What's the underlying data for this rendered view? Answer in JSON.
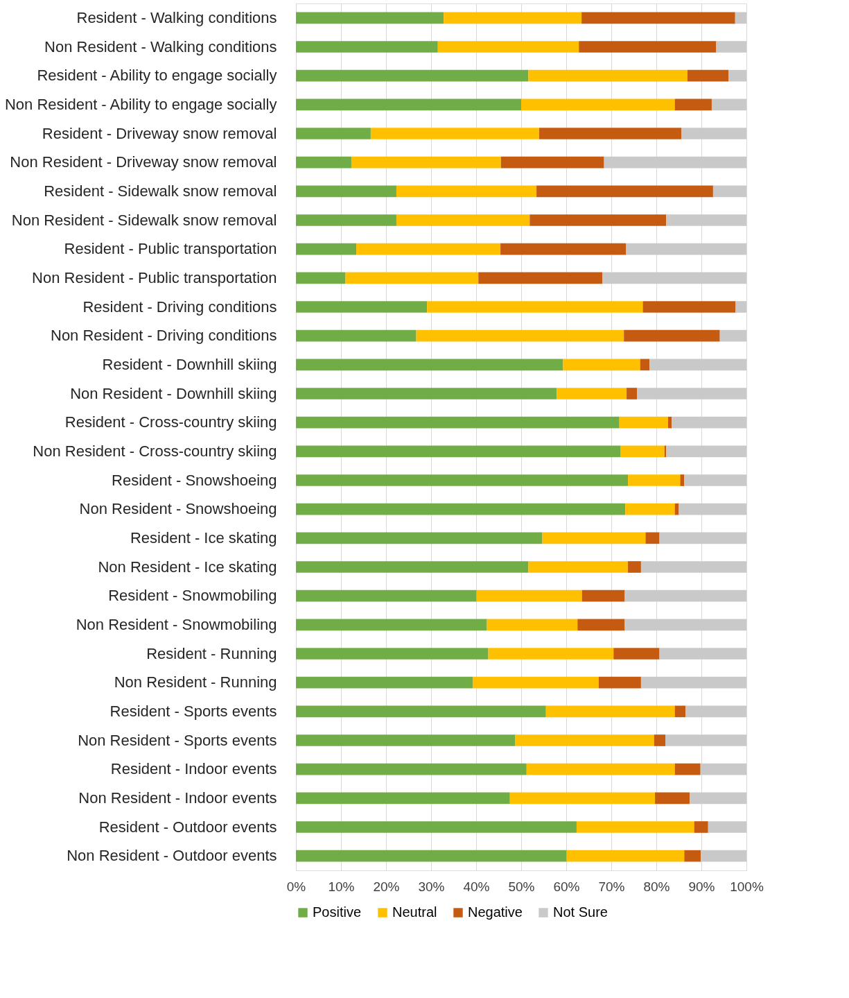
{
  "chart_data": {
    "type": "bar",
    "orientation": "horizontal",
    "stacked": true,
    "categories": [
      "Resident - Walking conditions",
      "Non Resident - Walking conditions",
      "Resident - Ability to engage socially",
      "Non Resident - Ability to engage socially",
      "Resident - Driveway snow removal",
      "Non Resident - Driveway snow removal",
      "Resident - Sidewalk snow removal",
      "Non Resident - Sidewalk snow removal",
      "Resident - Public transportation",
      "Non Resident - Public transportation",
      "Resident - Driving conditions",
      "Non Resident - Driving conditions",
      "Resident - Downhill skiing",
      "Non Resident - Downhill skiing",
      "Resident - Cross-country skiing",
      "Non Resident - Cross-country skiing",
      "Resident - Snowshoeing",
      "Non Resident - Snowshoeing",
      "Resident - Ice skating",
      "Non Resident - Ice skating",
      "Resident - Snowmobiling",
      "Non Resident - Snowmobiling",
      "Resident - Running",
      "Non Resident - Running",
      "Resident - Sports events",
      "Non Resident - Sports events",
      "Resident - Indoor events",
      "Non Resident - Indoor events",
      "Resident - Outdoor events",
      "Non Resident - Outdoor events"
    ],
    "series": [
      {
        "name": "Positive",
        "color": "#70ad47",
        "values": [
          32.8,
          31.5,
          51.6,
          50.0,
          16.6,
          12.3,
          22.3,
          22.3,
          13.4,
          11.0,
          29.1,
          26.7,
          59.3,
          57.9,
          71.8,
          72.1,
          73.7,
          73.1,
          54.7,
          51.6,
          40.1,
          42.4,
          42.7,
          39.3,
          55.5,
          48.7,
          51.2,
          47.5,
          62.3,
          60.1
        ]
      },
      {
        "name": "Neutral",
        "color": "#ffc000",
        "values": [
          30.6,
          31.3,
          35.3,
          34.1,
          37.4,
          33.2,
          31.1,
          29.6,
          32.0,
          29.5,
          47.9,
          46.1,
          17.1,
          15.5,
          10.8,
          9.7,
          11.6,
          11.0,
          22.9,
          22.1,
          23.4,
          20.1,
          27.8,
          27.9,
          28.6,
          30.8,
          32.9,
          32.2,
          26.1,
          26.1
        ]
      },
      {
        "name": "Negative",
        "color": "#c55a11",
        "values": [
          34.1,
          30.5,
          9.1,
          8.2,
          31.6,
          22.9,
          39.2,
          30.3,
          27.9,
          27.5,
          20.6,
          21.3,
          2.1,
          2.3,
          0.8,
          0.4,
          0.9,
          0.9,
          3.1,
          2.9,
          9.5,
          10.5,
          10.2,
          9.4,
          2.4,
          2.5,
          5.7,
          7.7,
          3.1,
          3.7
        ]
      },
      {
        "name": "Not Sure",
        "color": "#c9c9c9",
        "values": [
          2.5,
          6.7,
          4.0,
          7.7,
          14.4,
          31.6,
          7.4,
          17.8,
          26.7,
          32.0,
          2.4,
          5.9,
          21.5,
          24.3,
          16.6,
          17.8,
          13.8,
          15.0,
          19.3,
          23.4,
          27.0,
          27.0,
          19.3,
          23.4,
          13.5,
          18.0,
          10.2,
          12.6,
          8.5,
          10.1
        ]
      }
    ],
    "xlim": [
      0,
      100
    ],
    "xticks": [
      {
        "value": 0,
        "label": "0%"
      },
      {
        "value": 10,
        "label": "10%"
      },
      {
        "value": 20,
        "label": "20%"
      },
      {
        "value": 30,
        "label": "30%"
      },
      {
        "value": 40,
        "label": "40%"
      },
      {
        "value": 50,
        "label": "50%"
      },
      {
        "value": 60,
        "label": "60%"
      },
      {
        "value": 70,
        "label": "70%"
      },
      {
        "value": 80,
        "label": "80%"
      },
      {
        "value": 90,
        "label": "90%"
      },
      {
        "value": 100,
        "label": "100%"
      }
    ],
    "grid": "x",
    "legend": "bottom"
  }
}
